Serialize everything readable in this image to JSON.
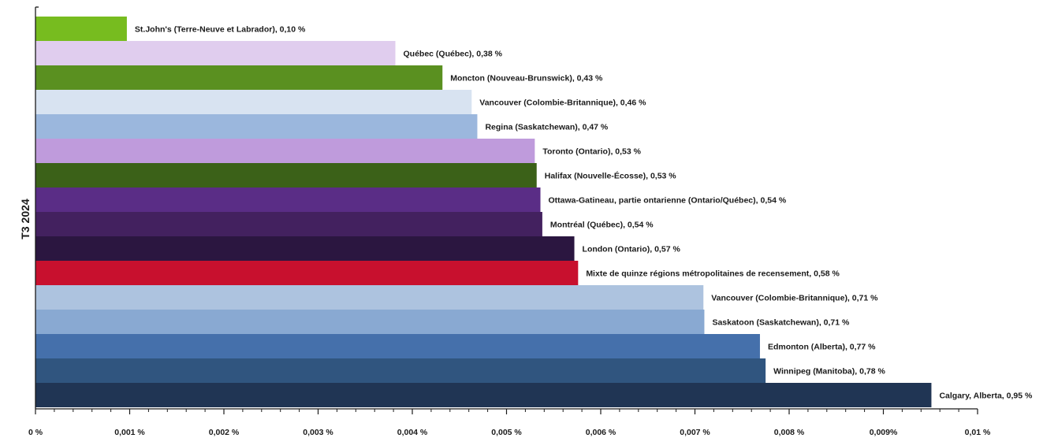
{
  "chart_data": {
    "type": "bar",
    "orientation": "horizontal",
    "title": "",
    "ylabel": "T3 2024",
    "xlabel": "",
    "xlim": [
      0,
      0.01
    ],
    "grid": false,
    "x_ticks": [
      {
        "value": 0,
        "label": "0 %"
      },
      {
        "value": 0.001,
        "label": "0,001 %"
      },
      {
        "value": 0.002,
        "label": "0,002 %"
      },
      {
        "value": 0.003,
        "label": "0,003 %"
      },
      {
        "value": 0.004,
        "label": "0,004 %"
      },
      {
        "value": 0.005,
        "label": "0,005 %"
      },
      {
        "value": 0.006,
        "label": "0,006 %"
      },
      {
        "value": 0.007,
        "label": "0,007 %"
      },
      {
        "value": 0.008,
        "label": "0,008 %"
      },
      {
        "value": 0.009,
        "label": "0,009%"
      },
      {
        "value": 0.01,
        "label": "0,01 %"
      }
    ],
    "bars": [
      {
        "label": "St.John's (Terre-Neuve et Labrador), 0,10 %",
        "value": 0.00097,
        "color": "#77bc1f"
      },
      {
        "label": "Québec (Québec), 0,38 %",
        "value": 0.00382,
        "color": "#e0cdee"
      },
      {
        "label": "Moncton (Nouveau-Brunswick), 0,43 %",
        "value": 0.00432,
        "color": "#5a9020"
      },
      {
        "label": "Vancouver (Colombie-Britannique),  0,46 %",
        "value": 0.00463,
        "color": "#d8e3f1"
      },
      {
        "label": "Regina (Saskatchewan), 0,47 %",
        "value": 0.00469,
        "color": "#9bb7dd"
      },
      {
        "label": "Toronto (Ontario), 0,53 %",
        "value": 0.0053,
        "color": "#bf9bdc"
      },
      {
        "label": "Halifax (Nouvelle-Écosse), 0,53 %",
        "value": 0.00532,
        "color": "#3b6118"
      },
      {
        "label": "Ottawa-Gatineau, partie ontarienne (Ontario/Québec), 0,54 %",
        "value": 0.00536,
        "color": "#5a2d86"
      },
      {
        "label": "Montréal (Québec), 0,54 %",
        "value": 0.00538,
        "color": "#43215f"
      },
      {
        "label": "London (Ontario), 0,57 %",
        "value": 0.00572,
        "color": "#2b1640"
      },
      {
        "label": "Mixte de quinze régions métropolitaines de recensement, 0,58 %",
        "value": 0.00576,
        "color": "#c8102e"
      },
      {
        "label": "Vancouver (Colombie-Britannique), 0,71 %",
        "value": 0.00709,
        "color": "#adc3df"
      },
      {
        "label": "Saskatoon (Saskatchewan), 0,71 %",
        "value": 0.0071,
        "color": "#89a9d2"
      },
      {
        "label": "Edmonton (Alberta), 0,77 %",
        "value": 0.00769,
        "color": "#4570ab"
      },
      {
        "label": "Winnipeg (Manitoba), 0,78 %",
        "value": 0.00775,
        "color": "#30557f"
      },
      {
        "label": "Calgary, Alberta, 0,95 %",
        "value": 0.00951,
        "color": "#203554"
      }
    ],
    "axis_color": "#1a1a1a"
  }
}
